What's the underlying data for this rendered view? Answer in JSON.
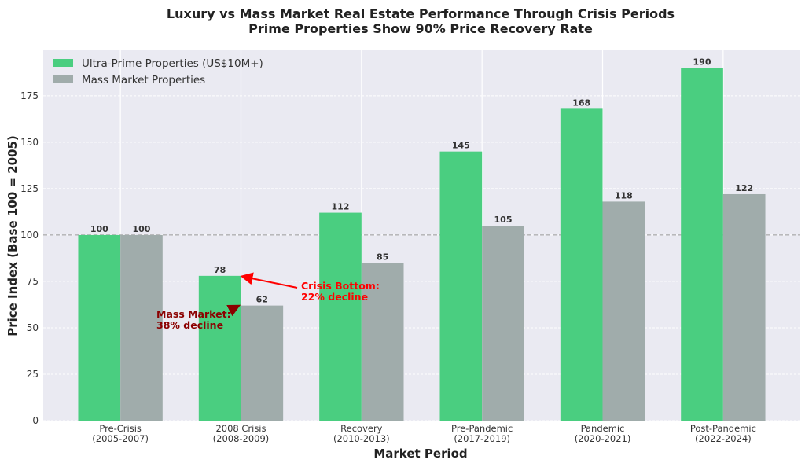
{
  "chart_data": {
    "type": "bar",
    "title": "Luxury vs Mass Market Real Estate Performance Through Crisis Periods",
    "subtitle": "Prime Properties Show 90% Price Recovery Rate",
    "xlabel": "Market Period",
    "ylabel": "Price Index (Base 100 = 2005)",
    "categories": [
      [
        "Pre-Crisis",
        "(2005-2007)"
      ],
      [
        "2008 Crisis",
        "(2008-2009)"
      ],
      [
        "Recovery",
        "(2010-2013)"
      ],
      [
        "Pre-Pandemic",
        "(2017-2019)"
      ],
      [
        "Pandemic",
        "(2020-2021)"
      ],
      [
        "Post-Pandemic",
        "(2022-2024)"
      ]
    ],
    "series": [
      {
        "name": "Ultra-Prime Properties (US$10M+)",
        "values": [
          100,
          78,
          112,
          145,
          168,
          190
        ],
        "color": "#4ace80"
      },
      {
        "name": "Mass Market Properties",
        "values": [
          100,
          62,
          85,
          105,
          118,
          122
        ],
        "color": "#a0acab"
      }
    ],
    "ylim": [
      0,
      199.5
    ],
    "yticks": [
      0,
      25,
      50,
      75,
      100,
      125,
      150,
      175
    ],
    "grid": true,
    "legend": "top-left",
    "reference_line": 100,
    "annotations": [
      {
        "lines": [
          "Crisis Bottom:",
          "22% decline"
        ],
        "color": "#ff0000",
        "target_category": 1,
        "target_series": 0
      },
      {
        "lines": [
          "Mass Market:",
          "38% decline"
        ],
        "color": "#8b0000",
        "target_category": 1,
        "target_series": 1
      }
    ]
  }
}
